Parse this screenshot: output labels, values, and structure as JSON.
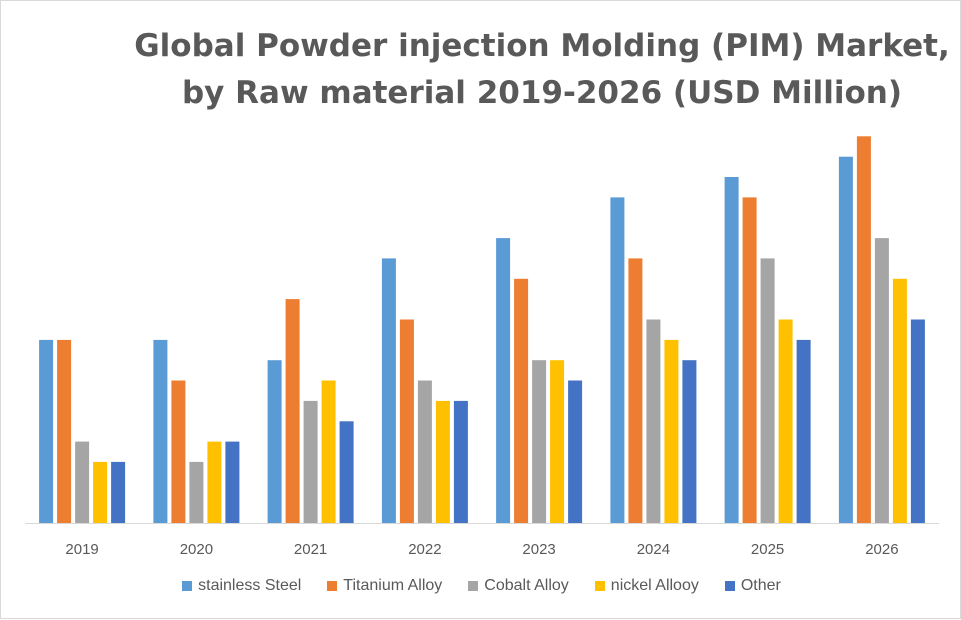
{
  "chart_data": {
    "type": "bar",
    "title": "Global Powder injection Molding (PIM) Market,",
    "subtitle": "by Raw material 2019-2026 (USD Million)",
    "xlabel": "",
    "ylabel": "",
    "ylim": [
      0,
      20
    ],
    "grid": false,
    "legend_position": "bottom",
    "categories": [
      "2019",
      "2020",
      "2021",
      "2022",
      "2023",
      "2024",
      "2025",
      "2026"
    ],
    "series": [
      {
        "name": "stainless Steel",
        "color": "#5b9bd5",
        "values": [
          9,
          9,
          8,
          13,
          14,
          16,
          17,
          18
        ]
      },
      {
        "name": "Titanium Alloy",
        "color": "#ed7d31",
        "values": [
          9,
          7,
          11,
          10,
          12,
          13,
          16,
          19
        ]
      },
      {
        "name": "Cobalt Alloy",
        "color": "#a5a5a5",
        "values": [
          4,
          3,
          6,
          7,
          8,
          10,
          13,
          14
        ]
      },
      {
        "name": "nickel Allooy",
        "color": "#ffc000",
        "values": [
          3,
          4,
          7,
          6,
          8,
          9,
          10,
          12
        ]
      },
      {
        "name": "Other",
        "color": "#4472c4",
        "values": [
          3,
          4,
          5,
          6,
          7,
          8,
          9,
          10
        ]
      }
    ]
  },
  "colors": {
    "axis": "#d9d9d9",
    "text": "#595959"
  }
}
